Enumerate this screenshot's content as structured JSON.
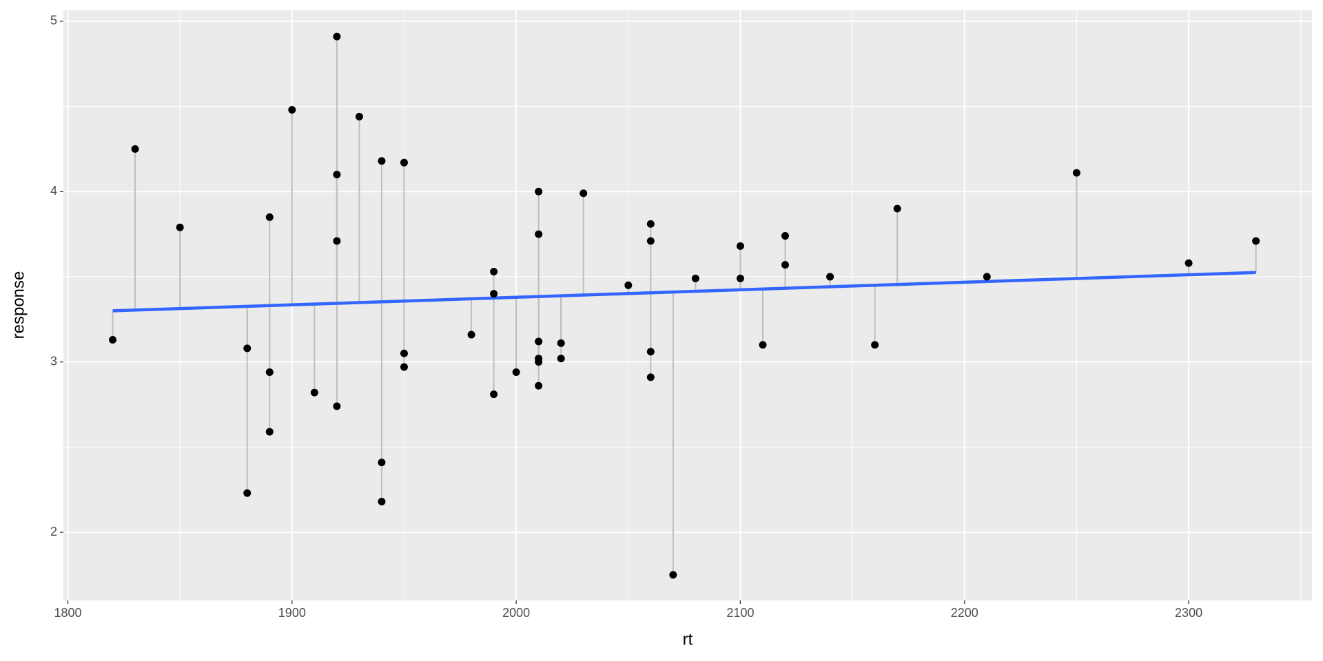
{
  "chart_data": {
    "type": "scatter",
    "x_label": "rt",
    "y_label": "response",
    "x": [
      1820,
      1830,
      1850,
      1880,
      1880,
      1890,
      1890,
      1890,
      1900,
      1910,
      1920,
      1920,
      1920,
      1920,
      1930,
      1940,
      1940,
      1940,
      1950,
      1950,
      1950,
      1980,
      1990,
      1990,
      1990,
      2000,
      2010,
      2010,
      2010,
      2010,
      2010,
      2010,
      2020,
      2020,
      2030,
      2050,
      2060,
      2060,
      2060,
      2060,
      2070,
      2080,
      2100,
      2100,
      2110,
      2120,
      2120,
      2140,
      2160,
      2170,
      2210,
      2250,
      2300,
      2330
    ],
    "y": [
      3.13,
      4.25,
      3.79,
      3.08,
      2.23,
      3.85,
      2.94,
      2.59,
      4.48,
      2.82,
      4.91,
      4.1,
      3.71,
      2.74,
      4.44,
      4.18,
      2.41,
      2.18,
      4.17,
      3.05,
      2.97,
      3.16,
      3.53,
      3.4,
      2.81,
      2.94,
      4.0,
      3.75,
      3.12,
      3.02,
      3.0,
      2.86,
      3.11,
      3.02,
      3.99,
      3.45,
      3.81,
      3.71,
      3.06,
      2.91,
      1.75,
      3.49,
      3.68,
      3.49,
      3.1,
      3.74,
      3.57,
      3.5,
      3.1,
      3.9,
      3.5,
      4.11,
      3.58,
      3.71
    ],
    "color": "#000000",
    "fit": {
      "x": [
        1820,
        2330
      ],
      "y": [
        3.3,
        3.525
      ],
      "color": "#3366ff"
    },
    "residual_color": "#bebebe",
    "xlim": [
      1798,
      2355
    ],
    "ylim": [
      1.6,
      5.064
    ],
    "xticks": [
      1800,
      1900,
      2000,
      2100,
      2200,
      2300
    ],
    "yticks": [
      2,
      3,
      4,
      5
    ],
    "minor_xticks": [
      1850,
      1950,
      2050,
      2150,
      2250,
      2350
    ],
    "minor_yticks": [
      2.5,
      3.5,
      4.5
    ],
    "grid": true
  }
}
